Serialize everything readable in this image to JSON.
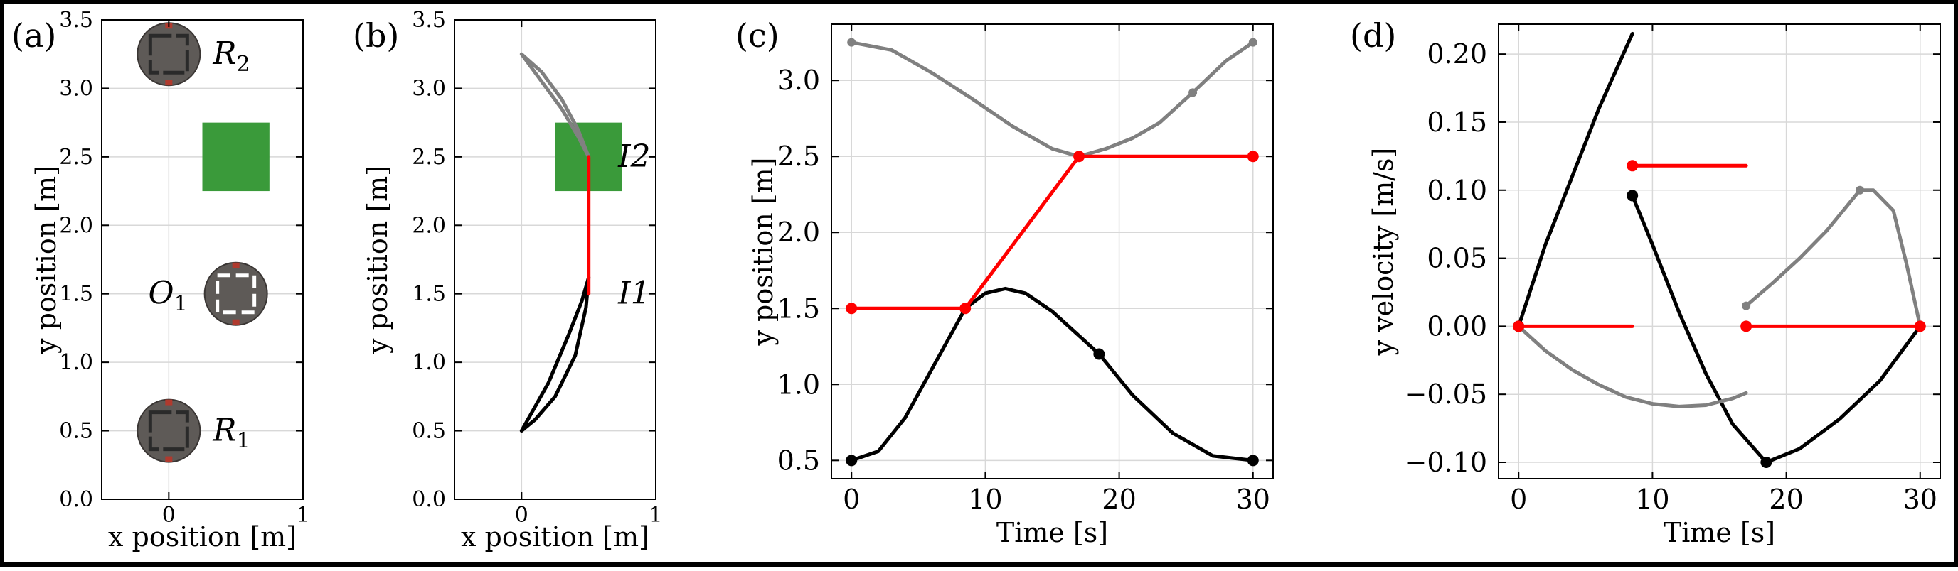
{
  "colors": {
    "black_series": "#000000",
    "gray_series": "#808080",
    "red_series": "#ff0000",
    "obstacle": "#3a9a3a",
    "grid": "#d8d8d8"
  },
  "chart_data": [
    {
      "panel_label": "(a)",
      "type": "scatter",
      "xlabel": "x position [m]",
      "ylabel": "y position [m]",
      "xlim": [
        -0.5,
        1.0
      ],
      "ylim": [
        0.0,
        3.5
      ],
      "xticks": [
        0,
        1
      ],
      "yticks": [
        0.0,
        0.5,
        1.0,
        1.5,
        2.0,
        2.5,
        3.0,
        3.5
      ],
      "grid": true,
      "robots": [
        {
          "name": "R",
          "subscript": "2",
          "x": 0.0,
          "y": 3.25
        },
        {
          "name": "O",
          "subscript": "1",
          "x": 0.5,
          "y": 1.5
        },
        {
          "name": "R",
          "subscript": "1",
          "x": 0.0,
          "y": 0.5
        }
      ],
      "obstacle": {
        "x": [
          0.25,
          0.75
        ],
        "y": [
          2.25,
          2.75
        ]
      }
    },
    {
      "panel_label": "(b)",
      "type": "line",
      "xlabel": "x position [m]",
      "ylabel": "y position [m]",
      "xlim": [
        -0.5,
        1.0
      ],
      "ylim": [
        0.0,
        3.5
      ],
      "xticks": [
        0,
        1
      ],
      "yticks": [
        0.0,
        0.5,
        1.0,
        1.5,
        2.0,
        2.5,
        3.0,
        3.5
      ],
      "grid": true,
      "annotations": [
        {
          "text": "I2",
          "x": 0.72,
          "y": 2.5
        },
        {
          "text": "I1",
          "x": 0.72,
          "y": 1.5
        }
      ],
      "obstacle": {
        "x": [
          0.25,
          0.75
        ],
        "y": [
          2.25,
          2.75
        ]
      },
      "series": [
        {
          "color": "black",
          "x": [
            0.0,
            0.2,
            0.35,
            0.45,
            0.5,
            0.48,
            0.4,
            0.25,
            0.1,
            0.0
          ],
          "y": [
            0.5,
            0.85,
            1.2,
            1.45,
            1.62,
            1.4,
            1.05,
            0.75,
            0.58,
            0.5
          ]
        },
        {
          "color": "gray",
          "x": [
            0.0,
            0.15,
            0.3,
            0.42,
            0.5,
            0.42,
            0.3,
            0.15,
            0.0
          ],
          "y": [
            3.25,
            3.05,
            2.85,
            2.65,
            2.5,
            2.7,
            2.92,
            3.12,
            3.25
          ]
        },
        {
          "color": "red",
          "x": [
            0.5,
            0.5
          ],
          "y": [
            1.5,
            2.5
          ]
        }
      ]
    },
    {
      "panel_label": "(c)",
      "type": "line",
      "xlabel": "Time [s]",
      "ylabel": "y position [m]",
      "xlim": [
        -1.5,
        31.5
      ],
      "ylim": [
        0.38,
        3.37
      ],
      "xticks": [
        0,
        10,
        20,
        30
      ],
      "yticks": [
        0.5,
        1.0,
        1.5,
        2.0,
        2.5,
        3.0
      ],
      "grid": true,
      "series": [
        {
          "color": "black",
          "x": [
            0,
            2,
            4,
            6,
            8.5,
            10,
            11.5,
            13,
            15,
            18.5,
            21,
            24,
            27,
            30
          ],
          "y": [
            0.5,
            0.56,
            0.78,
            1.1,
            1.5,
            1.6,
            1.63,
            1.6,
            1.48,
            1.2,
            0.93,
            0.68,
            0.53,
            0.5
          ],
          "markers": [
            [
              0,
              0.5
            ],
            [
              18.5,
              1.2
            ],
            [
              30,
              0.5
            ]
          ]
        },
        {
          "color": "gray",
          "x": [
            0,
            3,
            6,
            9,
            12,
            15,
            17,
            19,
            21,
            23,
            25.5,
            28,
            30
          ],
          "y": [
            3.25,
            3.2,
            3.05,
            2.88,
            2.7,
            2.55,
            2.5,
            2.55,
            2.62,
            2.72,
            2.92,
            3.13,
            3.25
          ],
          "markers": [
            [
              0,
              3.25
            ],
            [
              25.5,
              2.92
            ],
            [
              30,
              3.25
            ]
          ]
        },
        {
          "color": "red",
          "x": [
            0,
            8.5,
            17,
            30
          ],
          "y": [
            1.5,
            1.5,
            2.5,
            2.5
          ],
          "markers": [
            [
              0,
              1.5
            ],
            [
              8.5,
              1.5
            ],
            [
              17,
              2.5
            ],
            [
              30,
              2.5
            ]
          ]
        }
      ]
    },
    {
      "panel_label": "(d)",
      "type": "line",
      "xlabel": "Time [s]",
      "ylabel": "y velocity [m/s]",
      "xlim": [
        -1.5,
        31.5
      ],
      "ylim": [
        -0.112,
        0.222
      ],
      "xticks": [
        0,
        10,
        20,
        30
      ],
      "yticks": [
        -0.1,
        -0.05,
        0.0,
        0.05,
        0.1,
        0.15,
        0.2
      ],
      "grid": true,
      "series": [
        {
          "color": "black",
          "x": [
            0,
            2,
            4,
            6,
            8.5
          ],
          "y": [
            0.0,
            0.06,
            0.11,
            0.16,
            0.215
          ],
          "markers": [
            [
              0,
              0.0
            ]
          ]
        },
        {
          "color": "black",
          "x": [
            8.5,
            10,
            12,
            14,
            16,
            18.5,
            21,
            24,
            27,
            30
          ],
          "y": [
            0.096,
            0.06,
            0.01,
            -0.035,
            -0.072,
            -0.1,
            -0.09,
            -0.068,
            -0.04,
            0.0
          ],
          "markers": [
            [
              8.5,
              0.096
            ],
            [
              18.5,
              -0.1
            ]
          ]
        },
        {
          "color": "gray",
          "x": [
            0,
            2,
            4,
            6,
            8,
            10,
            12,
            14,
            16,
            17
          ],
          "y": [
            0.0,
            -0.018,
            -0.032,
            -0.043,
            -0.052,
            -0.057,
            -0.059,
            -0.058,
            -0.053,
            -0.049
          ]
        },
        {
          "color": "gray",
          "x": [
            17,
            19,
            21,
            23,
            25.5,
            26.5,
            28,
            29,
            30
          ],
          "y": [
            0.015,
            0.032,
            0.05,
            0.07,
            0.1,
            0.1,
            0.085,
            0.045,
            0.0
          ],
          "markers": [
            [
              17,
              0.015
            ],
            [
              25.5,
              0.1
            ]
          ]
        },
        {
          "color": "red",
          "x": [
            0,
            8.5
          ],
          "y": [
            0.0,
            0.0
          ],
          "markers": [
            [
              0,
              0.0
            ]
          ]
        },
        {
          "color": "red",
          "x": [
            8.5,
            17
          ],
          "y": [
            0.118,
            0.118
          ],
          "markers": [
            [
              8.5,
              0.118
            ]
          ]
        },
        {
          "color": "red",
          "x": [
            17,
            30
          ],
          "y": [
            0.0,
            0.0
          ],
          "markers": [
            [
              17,
              0.0
            ],
            [
              30,
              0.0
            ]
          ]
        }
      ]
    }
  ]
}
